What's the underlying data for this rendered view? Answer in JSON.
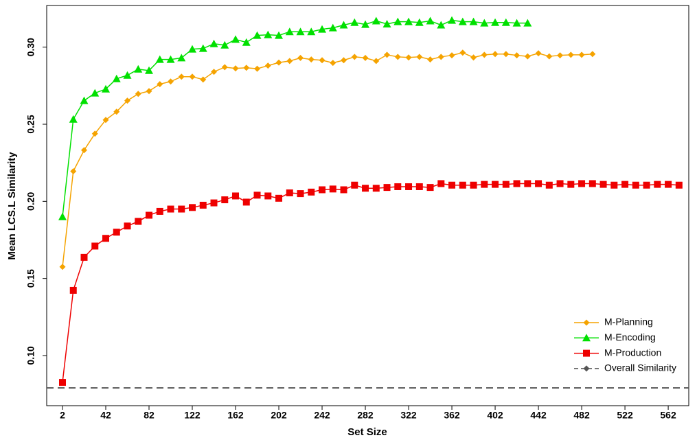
{
  "chart_data": {
    "type": "line",
    "x_label": "Set Size",
    "y_label": "Mean LCS.L Similarity",
    "x": [
      2,
      12,
      22,
      32,
      42,
      52,
      62,
      72,
      82,
      92,
      102,
      112,
      122,
      132,
      142,
      152,
      162,
      172,
      182,
      192,
      202,
      212,
      222,
      232,
      242,
      252,
      262,
      272,
      282,
      292,
      302,
      312,
      322,
      332,
      342,
      352,
      362,
      372,
      382,
      392,
      402,
      412,
      422,
      432,
      442,
      452,
      462,
      472,
      482,
      492,
      502,
      512,
      522,
      532,
      542,
      552,
      562,
      572
    ],
    "xlim": [
      -12.6,
      581
    ],
    "ylim": [
      0.0675,
      0.327
    ],
    "xticks": [
      2,
      42,
      82,
      122,
      162,
      202,
      242,
      282,
      322,
      362,
      402,
      442,
      482,
      522,
      562
    ],
    "yticks": [
      {
        "value": 0.1,
        "label": "0.10"
      },
      0.15,
      {
        "value": 0.2,
        "label": "0.20"
      },
      0.25,
      {
        "value": 0.3,
        "label": "0.30"
      }
    ],
    "legend_position": "bottom-right",
    "series": [
      {
        "name": "M-Planning",
        "color": "#f5a300",
        "marker": "diamond",
        "values": [
          0.1575,
          0.2195,
          0.2332,
          0.2439,
          0.2528,
          0.2581,
          0.2653,
          0.2697,
          0.2715,
          0.276,
          0.2777,
          0.2808,
          0.2808,
          0.279,
          0.284,
          0.287,
          0.2862,
          0.2866,
          0.286,
          0.288,
          0.29,
          0.291,
          0.293,
          0.292,
          0.2915,
          0.2898,
          0.2915,
          0.2937,
          0.293,
          0.291,
          0.295,
          0.2937,
          0.2933,
          0.2937,
          0.292,
          0.2937,
          0.2947,
          0.2964,
          0.2933,
          0.295,
          0.2955,
          0.2955,
          0.2947,
          0.294,
          0.296,
          0.294,
          0.2947,
          0.295,
          0.295,
          0.2955,
          null,
          null,
          null,
          null,
          null,
          null,
          null,
          null
        ]
      },
      {
        "name": "M-Encoding",
        "color": "#00e000",
        "marker": "triangle",
        "values": [
          0.19,
          0.2532,
          0.2653,
          0.2702,
          0.2728,
          0.2795,
          0.2817,
          0.2857,
          0.2848,
          0.292,
          0.292,
          0.293,
          0.2987,
          0.2991,
          0.3022,
          0.3013,
          0.305,
          0.3031,
          0.3076,
          0.308,
          0.3076,
          0.31,
          0.31,
          0.31,
          0.3116,
          0.3125,
          0.3143,
          0.316,
          0.3147,
          0.317,
          0.315,
          0.3165,
          0.3165,
          0.316,
          0.317,
          0.3143,
          0.3174,
          0.3165,
          0.3165,
          0.3156,
          0.316,
          0.316,
          0.3156,
          0.3156,
          null,
          null,
          null,
          null,
          null,
          null,
          null,
          null,
          null,
          null,
          null,
          null,
          null,
          null
        ]
      },
      {
        "name": "M-Production",
        "color": "#ee0000",
        "marker": "square",
        "values": [
          0.0826,
          0.1423,
          0.1637,
          0.171,
          0.176,
          0.18,
          0.184,
          0.187,
          0.191,
          0.1935,
          0.195,
          0.195,
          0.196,
          0.1975,
          0.199,
          0.201,
          0.2035,
          0.1995,
          0.204,
          0.2035,
          0.202,
          0.2055,
          0.205,
          0.206,
          0.2075,
          0.208,
          0.2075,
          0.2105,
          0.2085,
          0.2085,
          0.209,
          0.2095,
          0.2095,
          0.2095,
          0.209,
          0.2115,
          0.2105,
          0.2105,
          0.2105,
          0.211,
          0.211,
          0.211,
          0.2115,
          0.2115,
          0.2115,
          0.2105,
          0.2115,
          0.211,
          0.2115,
          0.2115,
          0.211,
          0.2105,
          0.211,
          0.2105,
          0.2105,
          0.211,
          0.211,
          0.2105
        ]
      }
    ],
    "reference_line": {
      "name": "Overall Similarity",
      "value": 0.079,
      "color": "#555555"
    }
  }
}
